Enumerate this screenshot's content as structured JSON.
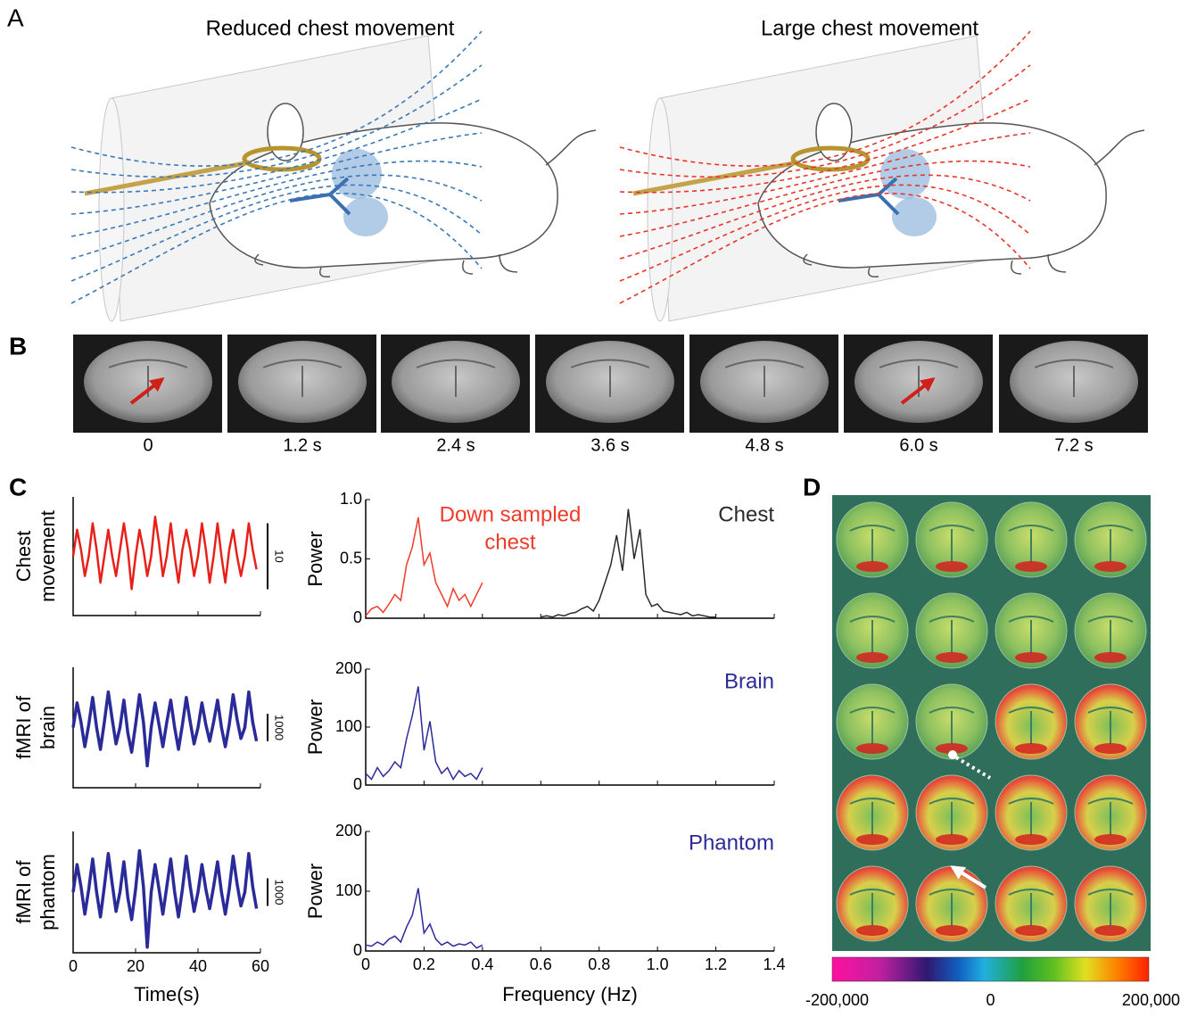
{
  "panel_a": {
    "label": "A",
    "left_title": "Reduced chest movement",
    "right_title": "Large chest movement"
  },
  "panel_b": {
    "label": "B",
    "frames": [
      "0",
      "1.2 s",
      "2.4 s",
      "3.6 s",
      "4.8 s",
      "6.0 s",
      "7.2 s"
    ]
  },
  "panel_c": {
    "label": "C",
    "time_axis": {
      "xlim": [
        0,
        60
      ],
      "xticks": [
        0,
        20,
        40,
        60
      ],
      "xlabel": "Time(s)"
    },
    "time": [
      0,
      1.25,
      2.5,
      3.75,
      5,
      6.25,
      7.5,
      8.75,
      10,
      11.25,
      12.5,
      13.75,
      15,
      16.25,
      17.5,
      18.75,
      20,
      21.25,
      22.5,
      23.75,
      25,
      26.25,
      27.5,
      28.75,
      30,
      31.25,
      32.5,
      33.75,
      35,
      36.25,
      37.5,
      38.75,
      40,
      41.25,
      42.5,
      43.75,
      45,
      46.25,
      47.5,
      48.75,
      50,
      51.25,
      52.5,
      53.75,
      55,
      56.25,
      57.5,
      58.75
    ],
    "traces": [
      {
        "ylabel_lines": [
          "Chest",
          "movement"
        ],
        "color": "#e8201a",
        "ylim": [
          -9,
          9
        ],
        "scale_bar": 10,
        "values": [
          0,
          4,
          1,
          -3,
          0,
          5,
          1,
          -4,
          0,
          4,
          0,
          -3,
          1,
          5,
          1,
          -5,
          0,
          4,
          1,
          -3,
          0,
          6,
          2,
          -3,
          0,
          5,
          0,
          -4,
          1,
          4,
          1,
          -3,
          0,
          5,
          1,
          -4,
          0,
          5,
          0,
          -4,
          1,
          4,
          0,
          -3,
          0,
          5,
          1,
          -2
        ]
      },
      {
        "ylabel_lines": [
          "fMRI of",
          "brain"
        ],
        "color": "#2b2a99",
        "ylim": [
          -2200,
          2200
        ],
        "scale_bar": 1000,
        "values": [
          0,
          900,
          200,
          -700,
          100,
          1100,
          0,
          -800,
          200,
          1300,
          300,
          -600,
          0,
          1000,
          -200,
          -900,
          100,
          1200,
          200,
          -1400,
          0,
          900,
          100,
          -700,
          200,
          1000,
          0,
          -800,
          100,
          1100,
          200,
          -600,
          0,
          900,
          100,
          -500,
          200,
          1000,
          0,
          -700,
          100,
          1200,
          300,
          -400,
          0,
          1300,
          200,
          -500
        ]
      },
      {
        "ylabel_lines": [
          "fMRI of",
          "phantom"
        ],
        "color": "#2b2a99",
        "ylim": [
          -2200,
          2200
        ],
        "scale_bar": 1000,
        "values": [
          0,
          1000,
          200,
          -800,
          100,
          1200,
          0,
          -900,
          200,
          1400,
          300,
          -700,
          0,
          1100,
          -200,
          -1000,
          100,
          1500,
          200,
          -2000,
          0,
          1000,
          100,
          -800,
          200,
          1200,
          0,
          -900,
          100,
          1300,
          200,
          -700,
          0,
          1000,
          100,
          -600,
          200,
          1100,
          0,
          -800,
          100,
          1300,
          300,
          -500,
          0,
          1400,
          200,
          -600
        ]
      }
    ],
    "freq_axis": {
      "xlim": [
        0,
        1.4
      ],
      "xticks": [
        0,
        0.2,
        0.4,
        0.6,
        0.8,
        {
          "value": 1,
          "label": "1.0"
        },
        1.2,
        1.4
      ],
      "xlabel": "Frequency (Hz)"
    },
    "spectra": [
      {
        "ylabel": "Power",
        "ylim": [
          0,
          1
        ],
        "yticks": [
          0,
          0.5,
          {
            "value": 1,
            "label": "1.0"
          }
        ],
        "series": [
          {
            "label_lines": [
              "Down sampled",
              "chest"
            ],
            "color": "#f03a2a",
            "x": [
              0,
              0.02,
              0.04,
              0.06,
              0.08,
              0.1,
              0.12,
              0.14,
              0.16,
              0.18,
              0.2,
              0.22,
              0.24,
              0.26,
              0.28,
              0.3,
              0.32,
              0.34,
              0.36,
              0.38,
              0.4
            ],
            "values": [
              0.02,
              0.08,
              0.1,
              0.05,
              0.12,
              0.2,
              0.15,
              0.45,
              0.6,
              0.85,
              0.45,
              0.55,
              0.3,
              0.2,
              0.1,
              0.25,
              0.15,
              0.2,
              0.1,
              0.2,
              0.3
            ]
          },
          {
            "label_lines": [
              "Chest"
            ],
            "color": "#2a2a2a",
            "x": [
              0.6,
              0.62,
              0.64,
              0.66,
              0.68,
              0.7,
              0.72,
              0.74,
              0.76,
              0.78,
              0.8,
              0.82,
              0.84,
              0.86,
              0.88,
              0.9,
              0.92,
              0.94,
              0.96,
              0.98,
              1,
              1.02,
              1.04,
              1.06,
              1.08,
              1.1,
              1.12,
              1.14,
              1.16,
              1.18,
              1.2
            ],
            "values": [
              0.01,
              0.02,
              0.01,
              0.03,
              0.02,
              0.04,
              0.05,
              0.08,
              0.1,
              0.06,
              0.15,
              0.3,
              0.45,
              0.7,
              0.4,
              0.92,
              0.5,
              0.75,
              0.2,
              0.1,
              0.12,
              0.06,
              0.05,
              0.04,
              0.03,
              0.05,
              0.02,
              0.03,
              0.02,
              0.01,
              0.01
            ]
          }
        ]
      },
      {
        "ylabel": "Power",
        "ylim": [
          0,
          200
        ],
        "yticks": [
          0,
          100,
          200
        ],
        "series": [
          {
            "label_lines": [
              "Brain"
            ],
            "color": "#2b2a99",
            "x": [
              0,
              0.02,
              0.04,
              0.06,
              0.08,
              0.1,
              0.12,
              0.14,
              0.16,
              0.18,
              0.2,
              0.22,
              0.24,
              0.26,
              0.28,
              0.3,
              0.32,
              0.34,
              0.36,
              0.38,
              0.4
            ],
            "values": [
              20,
              10,
              30,
              15,
              25,
              40,
              30,
              80,
              120,
              170,
              60,
              110,
              40,
              20,
              30,
              10,
              25,
              15,
              20,
              10,
              30
            ]
          }
        ]
      },
      {
        "ylabel": "Power",
        "ylim": [
          0,
          200
        ],
        "yticks": [
          0,
          100,
          200
        ],
        "series": [
          {
            "label_lines": [
              "Phantom"
            ],
            "color": "#2b2a99",
            "x": [
              0,
              0.02,
              0.04,
              0.06,
              0.08,
              0.1,
              0.12,
              0.14,
              0.16,
              0.18,
              0.2,
              0.22,
              0.24,
              0.26,
              0.28,
              0.3,
              0.32,
              0.34,
              0.36,
              0.38,
              0.4
            ],
            "values": [
              10,
              8,
              15,
              10,
              20,
              25,
              15,
              40,
              60,
              105,
              30,
              45,
              20,
              10,
              15,
              8,
              12,
              10,
              15,
              5,
              10
            ]
          }
        ]
      }
    ]
  },
  "panel_d": {
    "label": "D",
    "clim": [
      -200000,
      200000
    ],
    "colorbar_ticks": [
      {
        "value": -200000,
        "label": "-200,000"
      },
      0,
      {
        "value": 200000,
        "label": "200,000"
      }
    ]
  }
}
